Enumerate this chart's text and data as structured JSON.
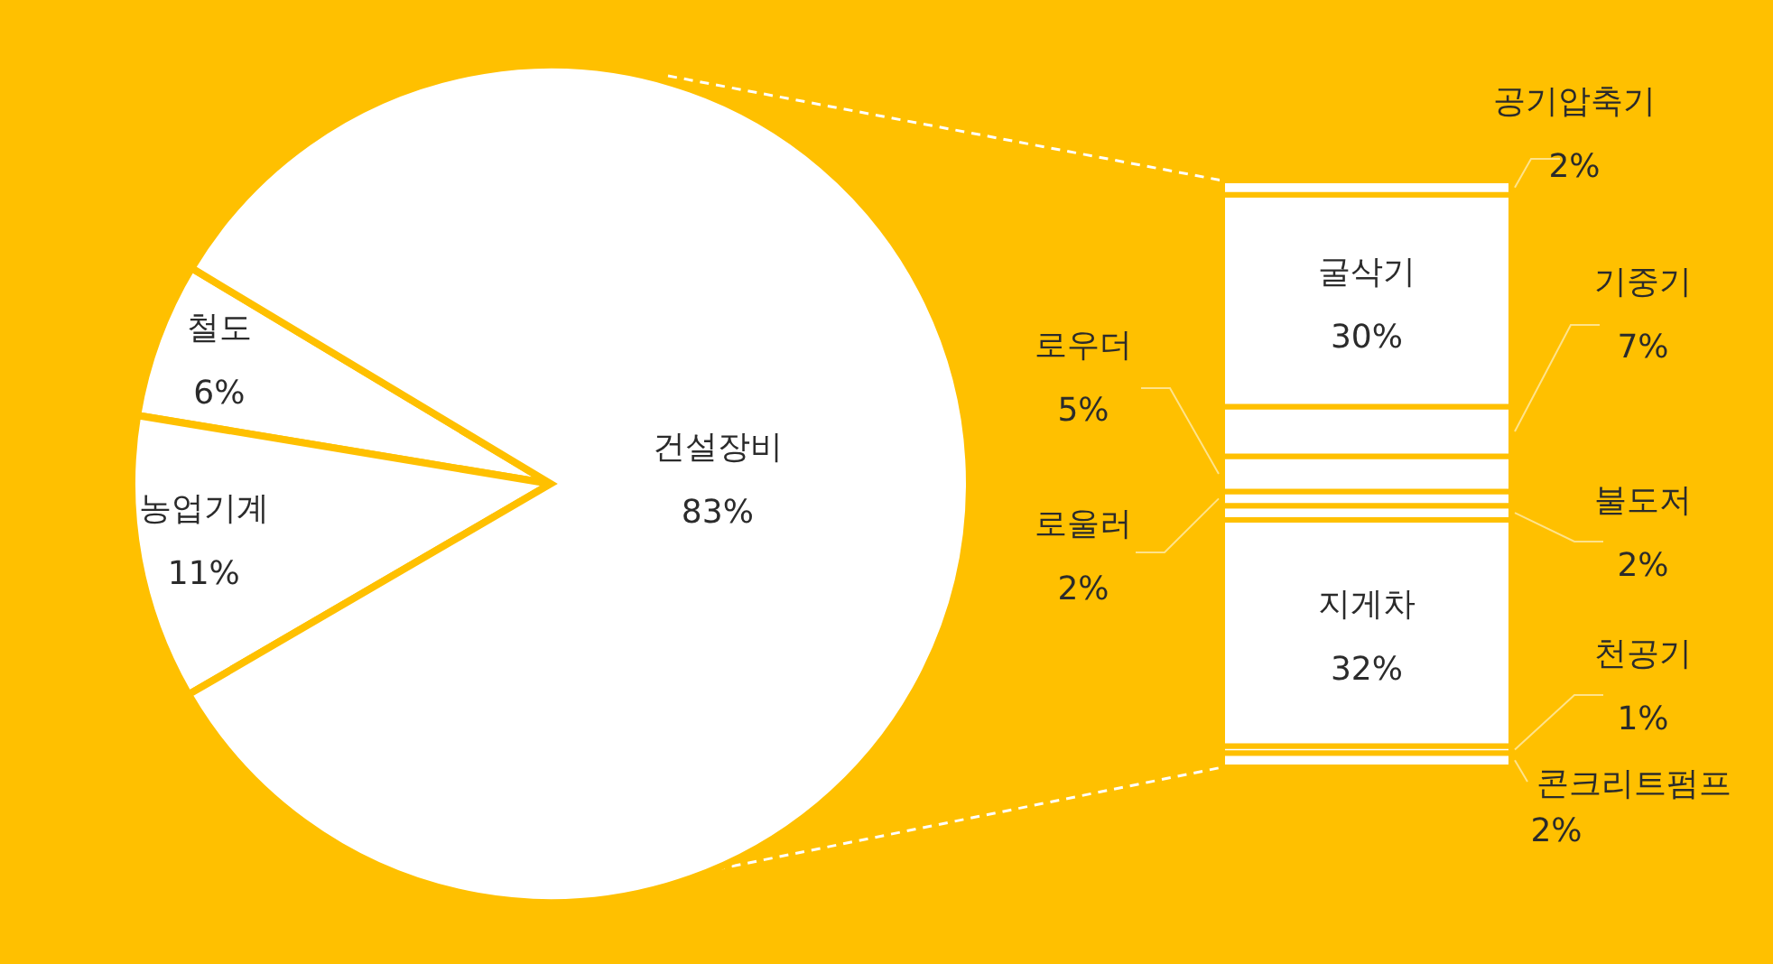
{
  "chart_data": [
    {
      "type": "pie",
      "categories": [
        "철도",
        "농업기계",
        "건설장비"
      ],
      "values": [
        6,
        11,
        83
      ],
      "colors": [
        "#ffffff",
        "#ffffff",
        "#ffffff"
      ],
      "value_labels": [
        "6%",
        "11%",
        "83%"
      ]
    },
    {
      "type": "bar",
      "stacked": true,
      "categories": [
        null
      ],
      "series": [
        {
          "name": "콘크리트펌프",
          "color": "#ffffff",
          "values": [
            2
          ],
          "value_labels": [
            "2%"
          ]
        },
        {
          "name": "천공기",
          "color": "#ffffff",
          "values": [
            1
          ],
          "value_labels": [
            "1%"
          ]
        },
        {
          "name": "지게차",
          "color": "#ffffff",
          "values": [
            32
          ],
          "value_labels": [
            "32%"
          ]
        },
        {
          "name": "불도저",
          "color": "#ffffff",
          "values": [
            2
          ],
          "value_labels": [
            "2%"
          ]
        },
        {
          "name": "로울러",
          "color": "#ffffff",
          "values": [
            2
          ],
          "value_labels": [
            "2%"
          ]
        },
        {
          "name": "로우더",
          "color": "#ffffff",
          "values": [
            5
          ],
          "value_labels": [
            "5%"
          ]
        },
        {
          "name": "기중기",
          "color": "#ffffff",
          "values": [
            7
          ],
          "value_labels": [
            "7%"
          ]
        },
        {
          "name": "굴삭기",
          "color": "#ffffff",
          "values": [
            30
          ],
          "value_labels": [
            "30%"
          ]
        },
        {
          "name": "공기압축기",
          "color": "#ffffff",
          "values": [
            2
          ],
          "value_labels": [
            "2%"
          ]
        }
      ]
    }
  ]
}
